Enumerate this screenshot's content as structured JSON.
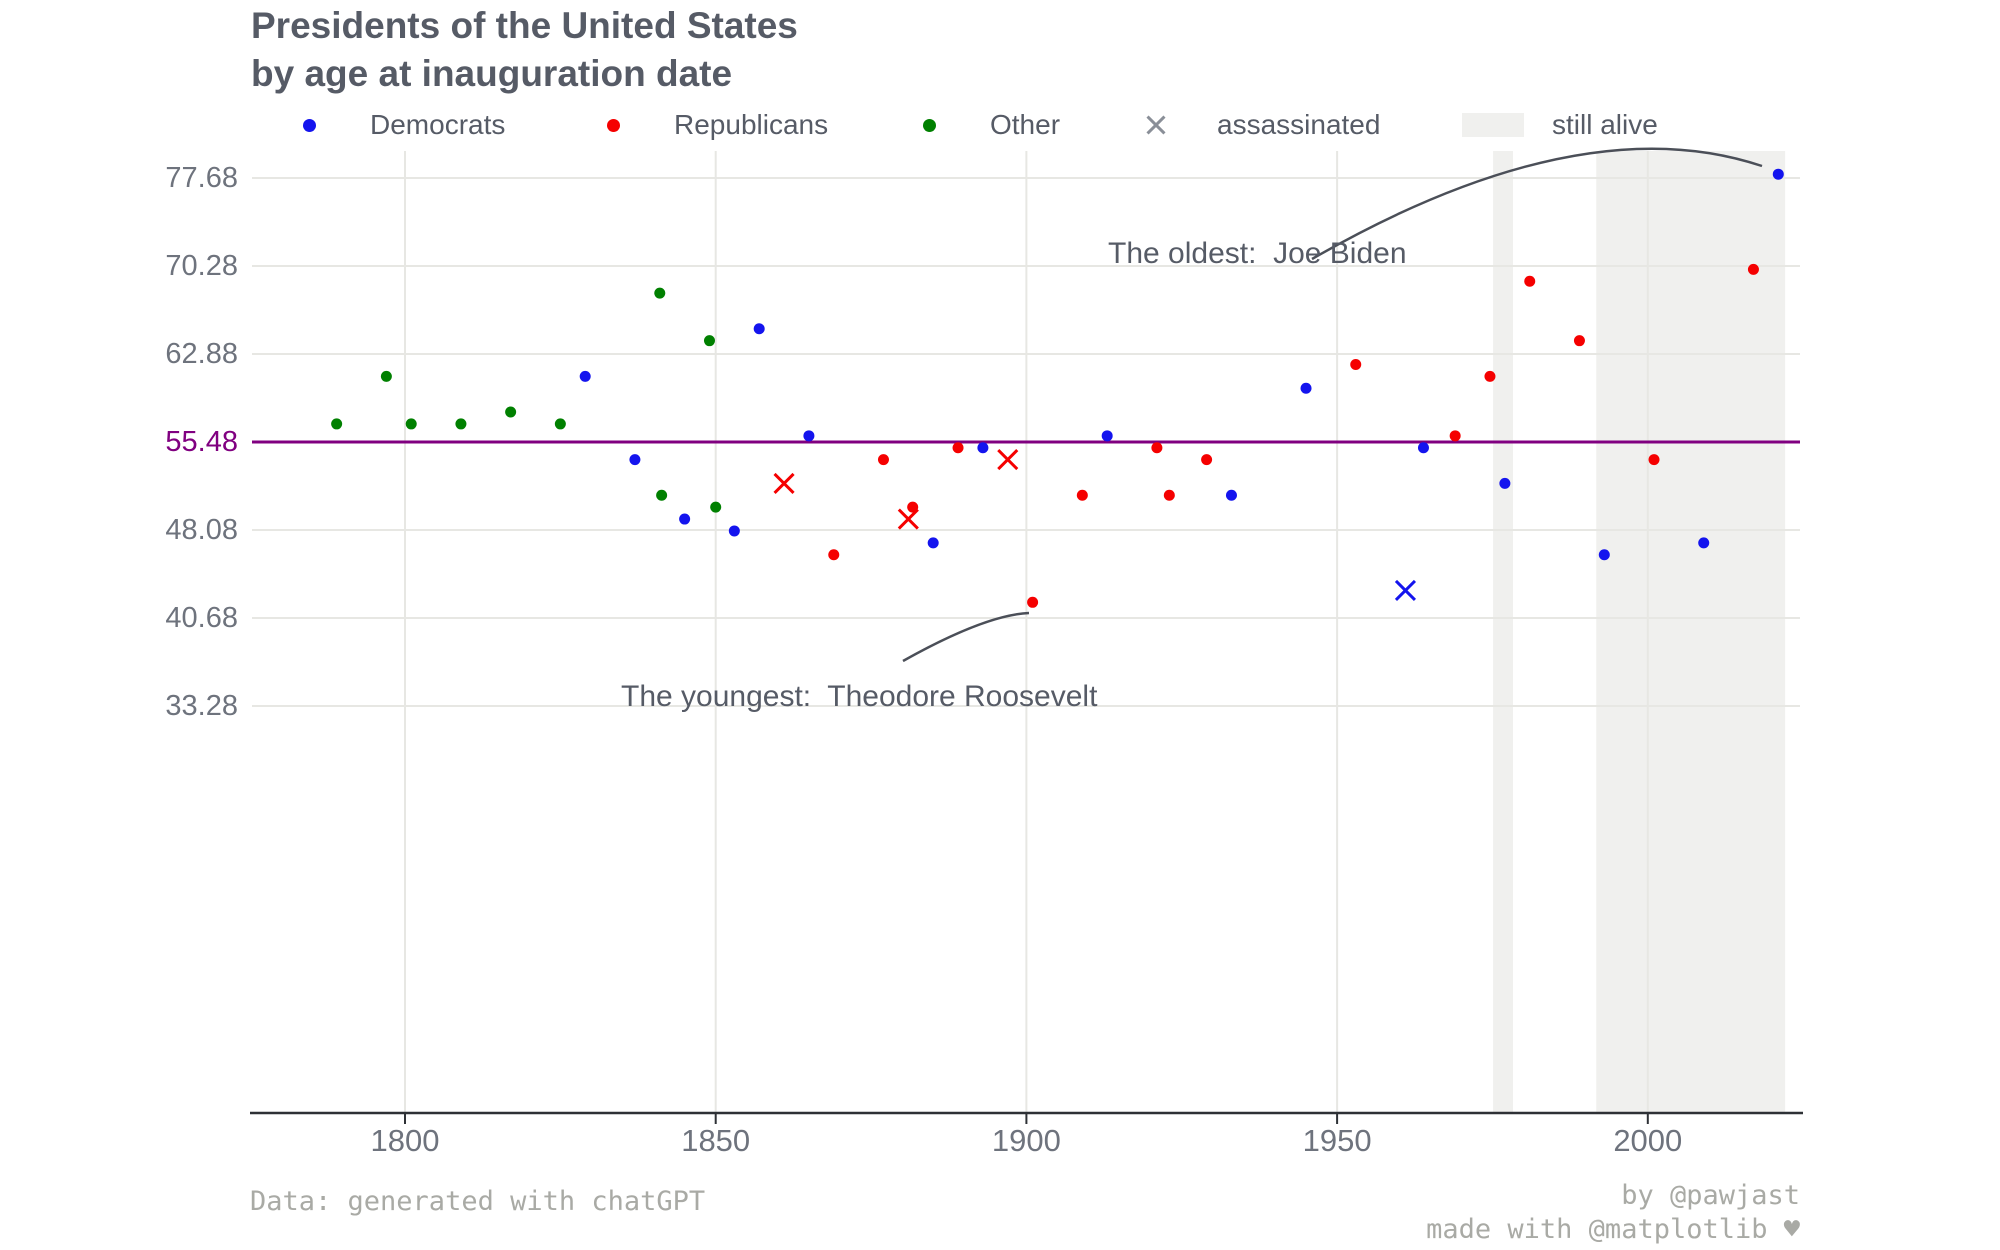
{
  "chart": {
    "title_line1": "Presidents of the United States",
    "title_line2": "by age at inauguration date",
    "legend": [
      {
        "label": "Democrats",
        "marker": "dot",
        "color_key": "democrats"
      },
      {
        "label": "Republicans",
        "marker": "dot",
        "color_key": "republicans"
      },
      {
        "label": "Other",
        "marker": "dot",
        "color_key": "other"
      },
      {
        "label": "assassinated",
        "marker": "x",
        "color_key": "assassinated_legend"
      },
      {
        "label": "still alive",
        "marker": "band",
        "color_key": "band"
      }
    ],
    "annotations": {
      "oldest": "The oldest:  Joe Biden",
      "youngest": "The youngest:  Theodore Roosevelt"
    },
    "footer_left": "Data: generated with chatGPT",
    "footer_by": "by @pawjast",
    "footer_made": "made with @matplotlib ♥"
  },
  "chart_data": {
    "type": "scatter",
    "title": "Presidents of the United States by age at inauguration date",
    "xlabel": "",
    "ylabel": "",
    "x_ticks": [
      1800,
      1850,
      1900,
      1950,
      2000
    ],
    "y_ticks": [
      77.68,
      70.28,
      62.88,
      55.48,
      48.08,
      40.68,
      33.28
    ],
    "xlim": [
      1775.5,
      2024.5
    ],
    "ylim": [
      -1,
      80
    ],
    "grid": true,
    "mean_line": 55.48,
    "legend_position": "top",
    "still_alive_bands_years": [
      [
        1975.1,
        1978.3
      ],
      [
        1991.7,
        2022.1
      ]
    ],
    "points": [
      {
        "year": 1789,
        "age": 57,
        "party": "other"
      },
      {
        "year": 1797,
        "age": 61,
        "party": "other"
      },
      {
        "year": 1801,
        "age": 57,
        "party": "other"
      },
      {
        "year": 1809,
        "age": 57,
        "party": "other"
      },
      {
        "year": 1817,
        "age": 58,
        "party": "other"
      },
      {
        "year": 1825,
        "age": 57,
        "party": "other"
      },
      {
        "year": 1829,
        "age": 61,
        "party": "democrat"
      },
      {
        "year": 1837,
        "age": 54,
        "party": "democrat"
      },
      {
        "year": 1841,
        "age": 68,
        "party": "other"
      },
      {
        "year": 1841.3,
        "age": 51,
        "party": "other"
      },
      {
        "year": 1845,
        "age": 49,
        "party": "democrat"
      },
      {
        "year": 1849,
        "age": 64,
        "party": "other"
      },
      {
        "year": 1850,
        "age": 50,
        "party": "other"
      },
      {
        "year": 1853,
        "age": 48,
        "party": "democrat"
      },
      {
        "year": 1857,
        "age": 65,
        "party": "democrat"
      },
      {
        "year": 1861,
        "age": 52,
        "party": "republican",
        "assassinated": true
      },
      {
        "year": 1865,
        "age": 56,
        "party": "democrat"
      },
      {
        "year": 1869,
        "age": 46,
        "party": "republican"
      },
      {
        "year": 1877,
        "age": 54,
        "party": "republican"
      },
      {
        "year": 1881,
        "age": 49,
        "party": "republican",
        "assassinated": true
      },
      {
        "year": 1881.7,
        "age": 50,
        "party": "republican"
      },
      {
        "year": 1885,
        "age": 47,
        "party": "democrat"
      },
      {
        "year": 1889,
        "age": 55,
        "party": "republican"
      },
      {
        "year": 1893,
        "age": 55,
        "party": "democrat"
      },
      {
        "year": 1897,
        "age": 54,
        "party": "republican",
        "assassinated": true
      },
      {
        "year": 1901,
        "age": 42,
        "party": "republican"
      },
      {
        "year": 1909,
        "age": 51,
        "party": "republican"
      },
      {
        "year": 1913,
        "age": 56,
        "party": "democrat"
      },
      {
        "year": 1921,
        "age": 55,
        "party": "republican"
      },
      {
        "year": 1923,
        "age": 51,
        "party": "republican"
      },
      {
        "year": 1929,
        "age": 54,
        "party": "republican"
      },
      {
        "year": 1933,
        "age": 51,
        "party": "democrat"
      },
      {
        "year": 1945,
        "age": 60,
        "party": "democrat"
      },
      {
        "year": 1953,
        "age": 62,
        "party": "republican"
      },
      {
        "year": 1961,
        "age": 43,
        "party": "democrat",
        "assassinated": true
      },
      {
        "year": 1963.9,
        "age": 55,
        "party": "democrat"
      },
      {
        "year": 1969,
        "age": 56,
        "party": "republican"
      },
      {
        "year": 1974.6,
        "age": 61,
        "party": "republican"
      },
      {
        "year": 1977,
        "age": 52,
        "party": "democrat"
      },
      {
        "year": 1981,
        "age": 69,
        "party": "republican"
      },
      {
        "year": 1989,
        "age": 64,
        "party": "republican"
      },
      {
        "year": 1993,
        "age": 46,
        "party": "democrat"
      },
      {
        "year": 2001,
        "age": 54,
        "party": "republican"
      },
      {
        "year": 2009,
        "age": 47,
        "party": "democrat"
      },
      {
        "year": 2017,
        "age": 70,
        "party": "republican"
      },
      {
        "year": 2021,
        "age": 78,
        "party": "democrat"
      }
    ]
  },
  "colors": {
    "democrats": "#1414ee",
    "republicans": "#f50000",
    "other": "#008000",
    "assassinated_legend": "#8a8f98",
    "mean_line": "#800080",
    "band": "#f0f0ee",
    "title": "#565b66",
    "tick": "#6e737d",
    "grid": "#e7e7e3",
    "axis": "#2e3136",
    "annotation": "#4b4f58",
    "footer": "#a9aaa5"
  }
}
